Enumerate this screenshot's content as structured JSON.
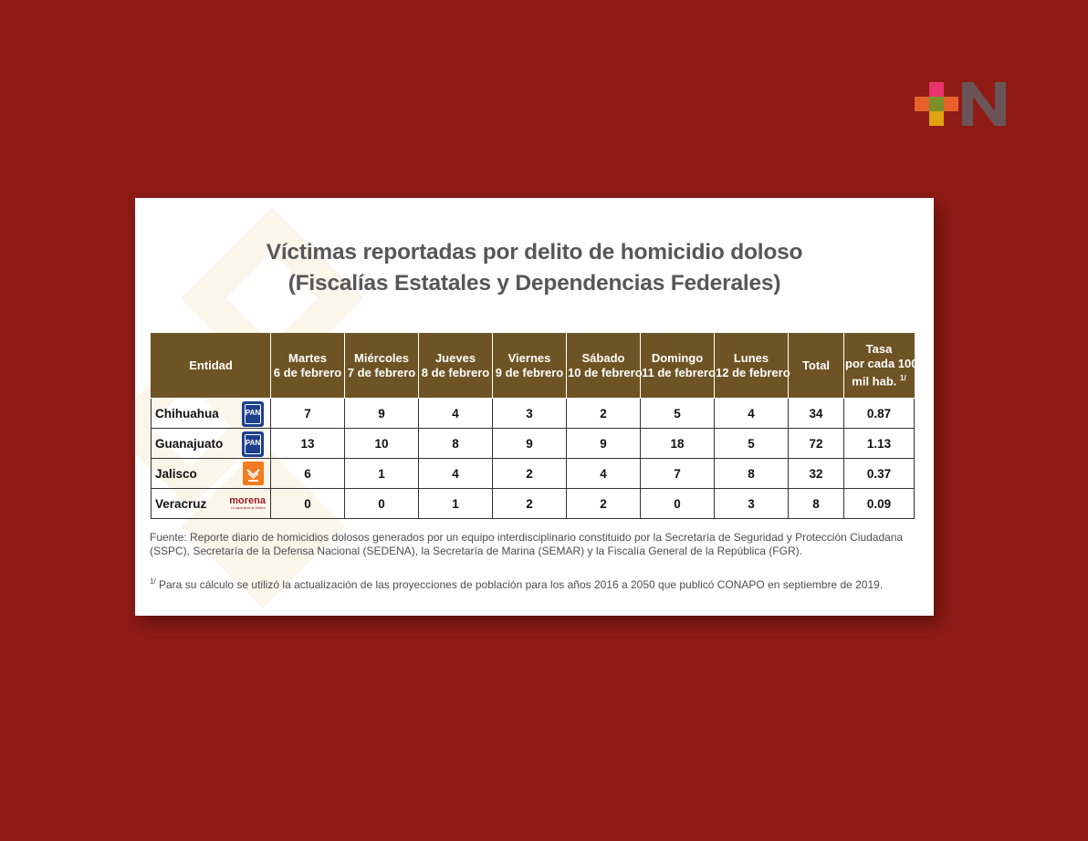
{
  "title_line1": "Víctimas reportadas por delito de homicidio doloso",
  "title_line2": "(Fiscalías Estatales y Dependencias Federales)",
  "colors": {
    "background": "#8f1b15",
    "header": "#6e5424",
    "logo_pink": "#e8336d",
    "logo_orange": "#e8602c",
    "logo_olive": "#7b8e2a",
    "logo_yellow": "#e2a313",
    "logo_n": "#6a5457"
  },
  "table": {
    "headers": [
      {
        "l1": "Entidad",
        "l2": ""
      },
      {
        "l1": "Martes",
        "l2": "6 de febrero"
      },
      {
        "l1": "Miércoles",
        "l2": "7 de febrero"
      },
      {
        "l1": "Jueves",
        "l2": "8 de febrero"
      },
      {
        "l1": "Viernes",
        "l2": "9 de febrero"
      },
      {
        "l1": "Sábado",
        "l2": "10 de febrero"
      },
      {
        "l1": "Domingo",
        "l2": "11  de febrero"
      },
      {
        "l1": "Lunes",
        "l2": "12 de febrero"
      },
      {
        "l1": "Total",
        "l2": ""
      },
      {
        "l1": "Tasa",
        "l2": "por cada 100",
        "l3": "mil hab.",
        "sup": "1/"
      }
    ],
    "rows": [
      {
        "entidad": "Chihuahua",
        "party": "PAN",
        "values": [
          "7",
          "9",
          "4",
          "3",
          "2",
          "5",
          "4",
          "34",
          "0.87"
        ]
      },
      {
        "entidad": "Guanajuato",
        "party": "PAN",
        "values": [
          "13",
          "10",
          "8",
          "9",
          "9",
          "18",
          "5",
          "72",
          "1.13"
        ]
      },
      {
        "entidad": "Jalisco",
        "party": "MC",
        "values": [
          "6",
          "1",
          "4",
          "2",
          "4",
          "7",
          "8",
          "32",
          "0.37"
        ]
      },
      {
        "entidad": "Veracruz",
        "party": "morena",
        "party_tagline": "La esperanza de México",
        "values": [
          "0",
          "0",
          "1",
          "2",
          "2",
          "0",
          "3",
          "8",
          "0.09"
        ]
      }
    ]
  },
  "fuente": "Fuente: Reporte diario de homicidios dolosos generados por un equipo interdisciplinario constituido por la Secretaría de Seguridad y Protección Ciudadana (SSPC), Secretaría de la Defensa Nacional (SEDENA), la Secretaría de Marina (SEMAR) y la Fiscalía General de la República (FGR).",
  "nota_sup": "1/",
  "nota": " Para su cálculo se utilizó la actualización de las proyecciones de población para los años 2016 a 2050 que publicó CONAPO en septiembre de 2019."
}
